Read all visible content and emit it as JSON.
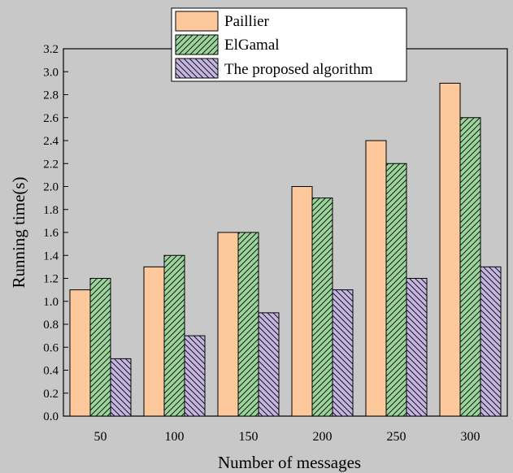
{
  "chart_data": {
    "type": "bar",
    "title": "",
    "xlabel": "Number of messages",
    "ylabel": "Running time(s)",
    "categories": [
      "50",
      "100",
      "150",
      "200",
      "250",
      "300"
    ],
    "series": [
      {
        "name": "Paillier",
        "values": [
          1.1,
          1.3,
          1.6,
          2.0,
          2.4,
          2.9
        ],
        "color": "#fdc89b",
        "pattern": "solid"
      },
      {
        "name": "ElGamal",
        "values": [
          1.2,
          1.4,
          1.6,
          1.9,
          2.2,
          2.6
        ],
        "color": "#9bd59b",
        "pattern": "forward-diagonal-hatch"
      },
      {
        "name": "The proposed algorithm",
        "values": [
          0.5,
          0.7,
          0.9,
          1.1,
          1.2,
          1.3
        ],
        "color": "#c4b6e1",
        "pattern": "backward-diagonal-hatch"
      }
    ],
    "ylim": [
      0,
      3.2
    ],
    "yticks": [
      "0.0",
      "0.2",
      "0.4",
      "0.6",
      "0.8",
      "1.0",
      "1.2",
      "1.4",
      "1.6",
      "1.8",
      "2.0",
      "2.2",
      "2.4",
      "2.6",
      "2.8",
      "3.0",
      "3.2"
    ],
    "grid": false,
    "legend_position": "top-center"
  }
}
